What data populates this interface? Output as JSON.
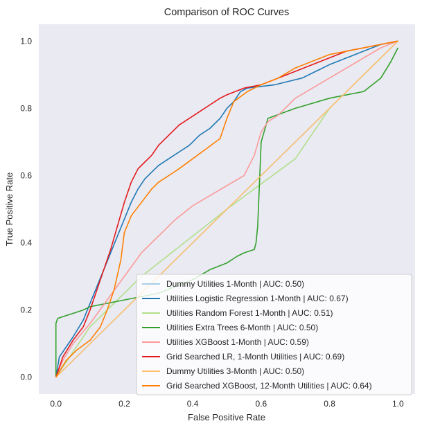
{
  "chart_data": {
    "type": "line",
    "title": "Comparison of ROC Curves",
    "xlabel": "False Positive Rate",
    "ylabel": "True Positive Rate",
    "xlim": [
      -0.05,
      1.05
    ],
    "ylim": [
      -0.05,
      1.05
    ],
    "xticks": [
      0.0,
      0.2,
      0.4,
      0.6,
      0.8,
      1.0
    ],
    "yticks": [
      0.0,
      0.2,
      0.4,
      0.6,
      0.8,
      1.0
    ],
    "xtick_labels": [
      "0.0",
      "0.2",
      "0.4",
      "0.6",
      "0.8",
      "1.0"
    ],
    "ytick_labels": [
      "0.0",
      "0.2",
      "0.4",
      "0.6",
      "0.8",
      "1.0"
    ],
    "grid": false,
    "background": "#eaeaf2",
    "legend_position": "lower-right",
    "series": [
      {
        "name": "Dummy Utilities 1-Month | AUC: 0.50)",
        "color": "#a6cee3",
        "x": [
          0,
          1
        ],
        "y": [
          0,
          1
        ]
      },
      {
        "name": "Utilities Logistic Regression 1-Month | AUC: 0.67)",
        "color": "#1f78b4",
        "x": [
          0,
          0.01,
          0.03,
          0.05,
          0.08,
          0.1,
          0.12,
          0.14,
          0.16,
          0.18,
          0.2,
          0.22,
          0.24,
          0.26,
          0.28,
          0.3,
          0.33,
          0.36,
          0.39,
          0.42,
          0.45,
          0.48,
          0.5,
          0.52,
          0.54,
          0.56,
          0.6,
          0.64,
          0.68,
          0.72,
          0.76,
          0.8,
          0.85,
          0.9,
          0.95,
          1.0
        ],
        "y": [
          0,
          0.06,
          0.09,
          0.12,
          0.17,
          0.22,
          0.27,
          0.32,
          0.37,
          0.42,
          0.47,
          0.52,
          0.56,
          0.59,
          0.61,
          0.63,
          0.65,
          0.67,
          0.69,
          0.72,
          0.74,
          0.77,
          0.8,
          0.82,
          0.85,
          0.86,
          0.865,
          0.87,
          0.88,
          0.89,
          0.91,
          0.93,
          0.95,
          0.97,
          0.99,
          1.0
        ]
      },
      {
        "name": "Utilities Random Forest 1-Month | AUC: 0.51)",
        "color": "#b2df8a",
        "x": [
          0,
          0.1,
          0.25,
          0.5,
          0.7,
          0.8,
          0.9,
          1.0
        ],
        "y": [
          0,
          0.15,
          0.3,
          0.5,
          0.65,
          0.8,
          0.9,
          1.0
        ]
      },
      {
        "name": "Utilities Extra Trees 6-Month | AUC: 0.50)",
        "color": "#33a02c",
        "x": [
          0,
          0.0,
          0.005,
          0.02,
          0.05,
          0.08,
          0.1,
          0.2,
          0.3,
          0.4,
          0.45,
          0.5,
          0.53,
          0.55,
          0.58,
          0.585,
          0.59,
          0.6,
          0.62,
          0.7,
          0.8,
          0.9,
          0.95,
          0.98,
          1.0
        ],
        "y": [
          0,
          0.16,
          0.175,
          0.18,
          0.19,
          0.2,
          0.21,
          0.23,
          0.25,
          0.29,
          0.32,
          0.34,
          0.36,
          0.37,
          0.38,
          0.4,
          0.45,
          0.7,
          0.77,
          0.8,
          0.83,
          0.85,
          0.89,
          0.94,
          0.98
        ]
      },
      {
        "name": "Utilities XGBoost 1-Month | AUC: 0.59)",
        "color": "#fb9a99",
        "x": [
          0,
          0.02,
          0.05,
          0.1,
          0.15,
          0.2,
          0.25,
          0.3,
          0.35,
          0.4,
          0.45,
          0.5,
          0.55,
          0.58,
          0.6,
          0.62,
          0.65,
          0.68,
          0.7,
          0.75,
          0.8,
          0.85,
          0.9,
          0.95,
          1.0
        ],
        "y": [
          0,
          0.05,
          0.1,
          0.16,
          0.23,
          0.3,
          0.37,
          0.42,
          0.47,
          0.51,
          0.54,
          0.57,
          0.6,
          0.66,
          0.73,
          0.76,
          0.78,
          0.81,
          0.83,
          0.86,
          0.89,
          0.92,
          0.95,
          0.98,
          1.0
        ]
      },
      {
        "name": "Grid Searched LR, 1-Month Utilities | AUC: 0.69)",
        "color": "#e31a1c",
        "x": [
          0,
          0.02,
          0.05,
          0.08,
          0.1,
          0.12,
          0.14,
          0.16,
          0.18,
          0.2,
          0.22,
          0.24,
          0.26,
          0.28,
          0.3,
          0.33,
          0.36,
          0.39,
          0.42,
          0.45,
          0.48,
          0.5,
          0.55,
          0.6,
          0.65,
          0.7,
          0.75,
          0.8,
          0.85,
          0.9,
          0.95,
          1.0
        ],
        "y": [
          0,
          0.06,
          0.11,
          0.15,
          0.2,
          0.26,
          0.32,
          0.38,
          0.45,
          0.52,
          0.58,
          0.62,
          0.64,
          0.66,
          0.69,
          0.72,
          0.75,
          0.77,
          0.79,
          0.81,
          0.83,
          0.84,
          0.86,
          0.87,
          0.89,
          0.91,
          0.93,
          0.95,
          0.97,
          0.98,
          0.99,
          1.0
        ]
      },
      {
        "name": "Dummy Utilities 3-Month | AUC: 0.50)",
        "color": "#fdbf6f",
        "x": [
          0,
          1
        ],
        "y": [
          0,
          1
        ]
      },
      {
        "name": "Grid Searched XGBoost, 12-Month Utilities | AUC: 0.64)",
        "color": "#ff7f00",
        "x": [
          0,
          0.03,
          0.06,
          0.1,
          0.13,
          0.15,
          0.17,
          0.19,
          0.2,
          0.22,
          0.25,
          0.28,
          0.3,
          0.33,
          0.36,
          0.4,
          0.44,
          0.48,
          0.5,
          0.52,
          0.56,
          0.6,
          0.65,
          0.7,
          0.75,
          0.8,
          0.85,
          0.9,
          0.95,
          1.0
        ],
        "y": [
          0,
          0.05,
          0.08,
          0.11,
          0.15,
          0.2,
          0.26,
          0.35,
          0.43,
          0.48,
          0.52,
          0.56,
          0.58,
          0.6,
          0.62,
          0.65,
          0.68,
          0.71,
          0.77,
          0.82,
          0.85,
          0.87,
          0.89,
          0.92,
          0.94,
          0.96,
          0.97,
          0.98,
          0.99,
          1.0
        ]
      }
    ]
  }
}
